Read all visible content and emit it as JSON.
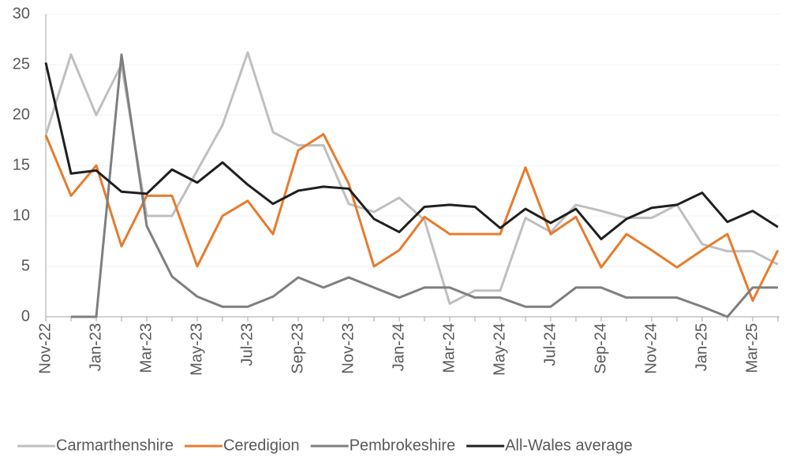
{
  "chart_data": {
    "type": "line",
    "categories": [
      "Nov-22",
      null,
      "Jan-23",
      null,
      "Mar-23",
      null,
      "May-23",
      null,
      "Jul-23",
      null,
      "Sep-23",
      null,
      "Nov-23",
      null,
      "Jan-24",
      null,
      "Mar-24",
      null,
      "May-24",
      null,
      "Jul-24",
      null,
      "Sep-24",
      null,
      "Nov-24",
      null,
      "Jan-25",
      null,
      "Mar-25",
      null
    ],
    "series": [
      {
        "name": "Carmarthenshire",
        "color": "#bfbfbf",
        "values": [
          18,
          26,
          20,
          25,
          10,
          10,
          14.5,
          19,
          26.2,
          18.3,
          17,
          17,
          11.2,
          10.4,
          11.8,
          9.6,
          1.3,
          2.6,
          2.6,
          9.8,
          8.4,
          11.1,
          10.5,
          9.8,
          9.8,
          11.1,
          7.2,
          6.5,
          6.5,
          5.2
        ]
      },
      {
        "name": "Ceredigion",
        "color": "#e87b2c",
        "values": [
          18,
          12,
          15,
          7,
          12,
          12,
          5,
          10,
          11.5,
          8.2,
          16.5,
          18.1,
          13.2,
          5,
          6.6,
          9.9,
          8.2,
          8.2,
          8.2,
          14.8,
          8.2,
          9.9,
          4.9,
          8.2,
          6.6,
          4.9,
          6.6,
          8.2,
          1.6,
          6.6
        ]
      },
      {
        "name": "Pembrokeshire",
        "color": "#7f7f7f",
        "values": [
          null,
          0,
          0,
          26,
          9,
          4,
          2,
          1,
          1,
          2,
          3.9,
          2.9,
          3.9,
          2.9,
          1.9,
          2.9,
          2.9,
          1.9,
          1.9,
          1,
          1,
          2.9,
          2.9,
          1.9,
          1.9,
          1.9,
          1,
          0,
          2.9,
          2.9
        ]
      },
      {
        "name": "All-Wales average",
        "color": "#1f1f1f",
        "values": [
          25.2,
          14.2,
          14.5,
          12.4,
          12.2,
          14.6,
          13.3,
          15.3,
          13.1,
          11.2,
          12.5,
          12.9,
          12.7,
          9.7,
          8.4,
          10.9,
          11.1,
          10.9,
          8.8,
          10.7,
          9.3,
          10.7,
          7.7,
          9.7,
          10.8,
          11.1,
          12.3,
          9.4,
          10.5,
          8.9
        ]
      }
    ],
    "ylim": [
      0,
      30
    ],
    "yticks": [
      0,
      5,
      10,
      15,
      20,
      25,
      30
    ],
    "grid": true,
    "legend": "bottom"
  }
}
